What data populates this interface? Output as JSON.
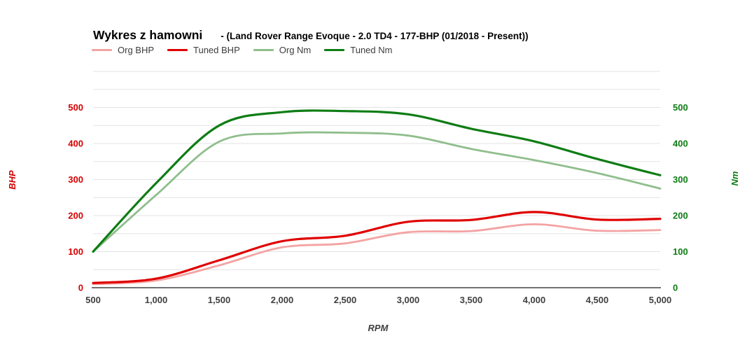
{
  "header": {
    "title": "Wykres z hamowni",
    "subtitle": "- (Land Rover Range Evoque - 2.0 TD4 - 177-BHP (01/2018 - Present))"
  },
  "chart_data": {
    "type": "line",
    "title": "Wykres z hamowni",
    "xlabel": "RPM",
    "ylabel_left": "BHP",
    "ylabel_right": "Nm",
    "x": [
      500,
      1000,
      1500,
      2000,
      2500,
      3000,
      3500,
      4000,
      4500,
      5000
    ],
    "x_tick_labels": [
      "500",
      "1,000",
      "1,500",
      "2,000",
      "2,500",
      "3,000",
      "3,500",
      "4,000",
      "4,500",
      "5,000"
    ],
    "series": [
      {
        "name": "Org BHP",
        "axis": "left",
        "color": "#f4a3a3",
        "values": [
          10,
          20,
          62,
          112,
          123,
          154,
          157,
          176,
          158,
          160
        ]
      },
      {
        "name": "Tuned BHP",
        "axis": "left",
        "color": "#e00000",
        "values": [
          13,
          25,
          76,
          129,
          144,
          183,
          188,
          210,
          189,
          191
        ]
      },
      {
        "name": "Org Nm",
        "axis": "right",
        "color": "#8fbe8c",
        "values": [
          100,
          257,
          405,
          428,
          430,
          422,
          385,
          354,
          318,
          275
        ]
      },
      {
        "name": "Tuned Nm",
        "axis": "right",
        "color": "#0e7d14",
        "values": [
          100,
          290,
          450,
          487,
          490,
          481,
          441,
          406,
          357,
          312
        ]
      }
    ],
    "ylim": [
      0,
      600
    ],
    "yticks_labeled": [
      0,
      100,
      200,
      300,
      400,
      500
    ],
    "grid_step": 50,
    "grid": true,
    "legend_position": "top-left",
    "axis_colors": {
      "left": "#d40000",
      "right": "#0e7d14",
      "x": "#404040"
    },
    "gridline_color": "#e3e3e3",
    "baseline_color": "#424242"
  }
}
